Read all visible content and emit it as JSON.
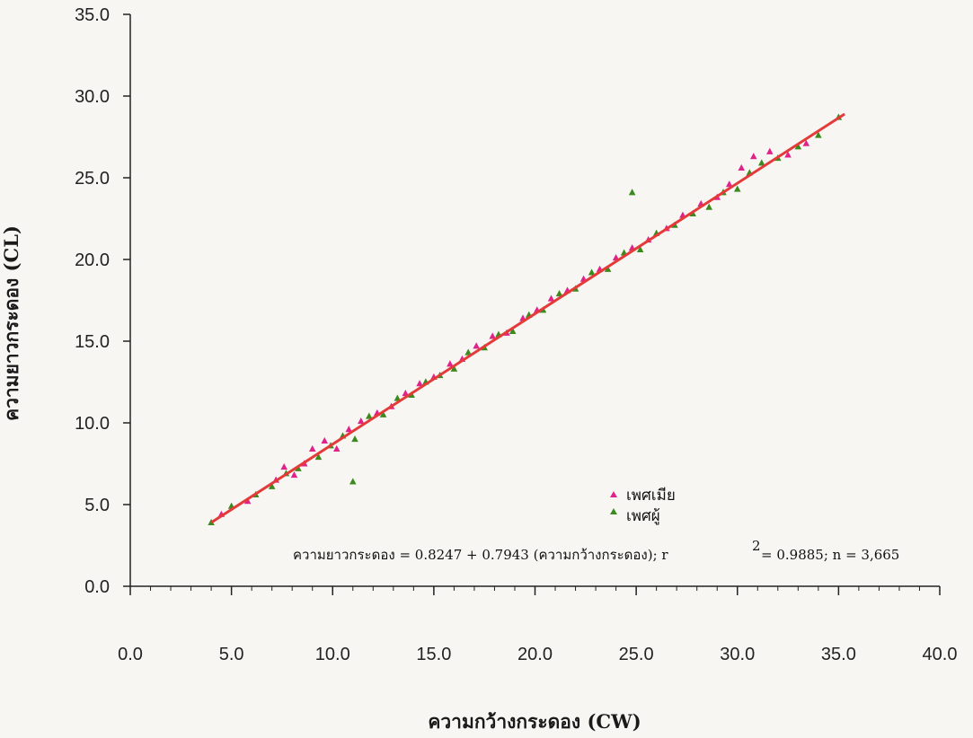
{
  "chart_data": {
    "type": "scatter",
    "xlabel": "ความกว้างกระดอง (CW)",
    "ylabel": "ความยาวกระดอง (CL)",
    "xlim": [
      0,
      40
    ],
    "ylim": [
      0,
      35
    ],
    "x_ticks": [
      "0.0",
      "5.0",
      "10.0",
      "15.0",
      "20.0",
      "25.0",
      "30.0",
      "35.0",
      "40.0"
    ],
    "y_ticks": [
      "0.0",
      "5.0",
      "10.0",
      "15.0",
      "20.0",
      "25.0",
      "30.0",
      "35.0"
    ],
    "legend_position": "center-right",
    "grid": false,
    "series": [
      {
        "name": "เพศเมีย",
        "marker": "triangle",
        "color": "#e0238a",
        "points": [
          [
            4.5,
            4.4
          ],
          [
            5.8,
            5.2
          ],
          [
            7.2,
            6.5
          ],
          [
            7.6,
            7.3
          ],
          [
            8.1,
            6.8
          ],
          [
            8.6,
            7.5
          ],
          [
            9.0,
            8.4
          ],
          [
            9.6,
            8.9
          ],
          [
            10.2,
            8.4
          ],
          [
            10.8,
            9.6
          ],
          [
            11.4,
            10.1
          ],
          [
            12.2,
            10.6
          ],
          [
            12.9,
            11.0
          ],
          [
            13.6,
            11.8
          ],
          [
            14.3,
            12.4
          ],
          [
            15.0,
            12.8
          ],
          [
            15.8,
            13.6
          ],
          [
            16.4,
            13.9
          ],
          [
            17.1,
            14.7
          ],
          [
            17.9,
            15.3
          ],
          [
            18.6,
            15.5
          ],
          [
            19.4,
            16.4
          ],
          [
            20.1,
            16.9
          ],
          [
            20.8,
            17.6
          ],
          [
            21.6,
            18.1
          ],
          [
            22.4,
            18.8
          ],
          [
            23.2,
            19.4
          ],
          [
            24.0,
            20.1
          ],
          [
            24.8,
            20.7
          ],
          [
            25.6,
            21.2
          ],
          [
            26.5,
            21.9
          ],
          [
            27.3,
            22.7
          ],
          [
            28.2,
            23.4
          ],
          [
            29.0,
            23.8
          ],
          [
            29.6,
            24.6
          ],
          [
            30.2,
            25.6
          ],
          [
            30.8,
            26.3
          ],
          [
            31.6,
            26.6
          ],
          [
            32.5,
            26.4
          ],
          [
            33.4,
            27.1
          ]
        ]
      },
      {
        "name": "เพศผู้",
        "marker": "triangle",
        "color": "#3b8a1e",
        "points": [
          [
            4.0,
            3.9
          ],
          [
            5.0,
            4.9
          ],
          [
            6.2,
            5.6
          ],
          [
            7.0,
            6.1
          ],
          [
            7.7,
            6.9
          ],
          [
            8.3,
            7.2
          ],
          [
            9.3,
            7.9
          ],
          [
            9.9,
            8.6
          ],
          [
            10.5,
            9.2
          ],
          [
            11.1,
            9.0
          ],
          [
            11.8,
            10.4
          ],
          [
            12.5,
            10.5
          ],
          [
            13.2,
            11.5
          ],
          [
            13.9,
            11.7
          ],
          [
            14.6,
            12.5
          ],
          [
            15.3,
            12.9
          ],
          [
            16.0,
            13.3
          ],
          [
            16.7,
            14.3
          ],
          [
            17.5,
            14.6
          ],
          [
            18.2,
            15.4
          ],
          [
            18.9,
            15.6
          ],
          [
            19.7,
            16.6
          ],
          [
            20.4,
            16.9
          ],
          [
            21.2,
            17.9
          ],
          [
            22.0,
            18.2
          ],
          [
            22.8,
            19.2
          ],
          [
            23.6,
            19.4
          ],
          [
            24.4,
            20.4
          ],
          [
            25.2,
            20.6
          ],
          [
            26.0,
            21.6
          ],
          [
            26.9,
            22.1
          ],
          [
            27.8,
            22.8
          ],
          [
            28.6,
            23.2
          ],
          [
            29.3,
            24.1
          ],
          [
            30.0,
            24.3
          ],
          [
            30.6,
            25.3
          ],
          [
            31.2,
            25.9
          ],
          [
            32.0,
            26.2
          ],
          [
            33.0,
            26.9
          ],
          [
            34.0,
            27.6
          ],
          [
            35.0,
            28.7
          ],
          [
            11.0,
            6.4
          ],
          [
            24.8,
            24.1
          ]
        ]
      }
    ],
    "fit_line": {
      "color": "#e53a3a",
      "x": [
        4.0,
        35.3
      ],
      "y": [
        3.9,
        28.9
      ]
    }
  },
  "legend": {
    "female_label": "เพศเมีย",
    "male_label": "เพศผู้"
  },
  "equation": {
    "text": "ความยาวกระดอง  = 0.8247 + 0.7943 (ความกว้างกระดอง); r",
    "superscript": "2",
    "tail": "= 0.9885; n = 3,665"
  }
}
